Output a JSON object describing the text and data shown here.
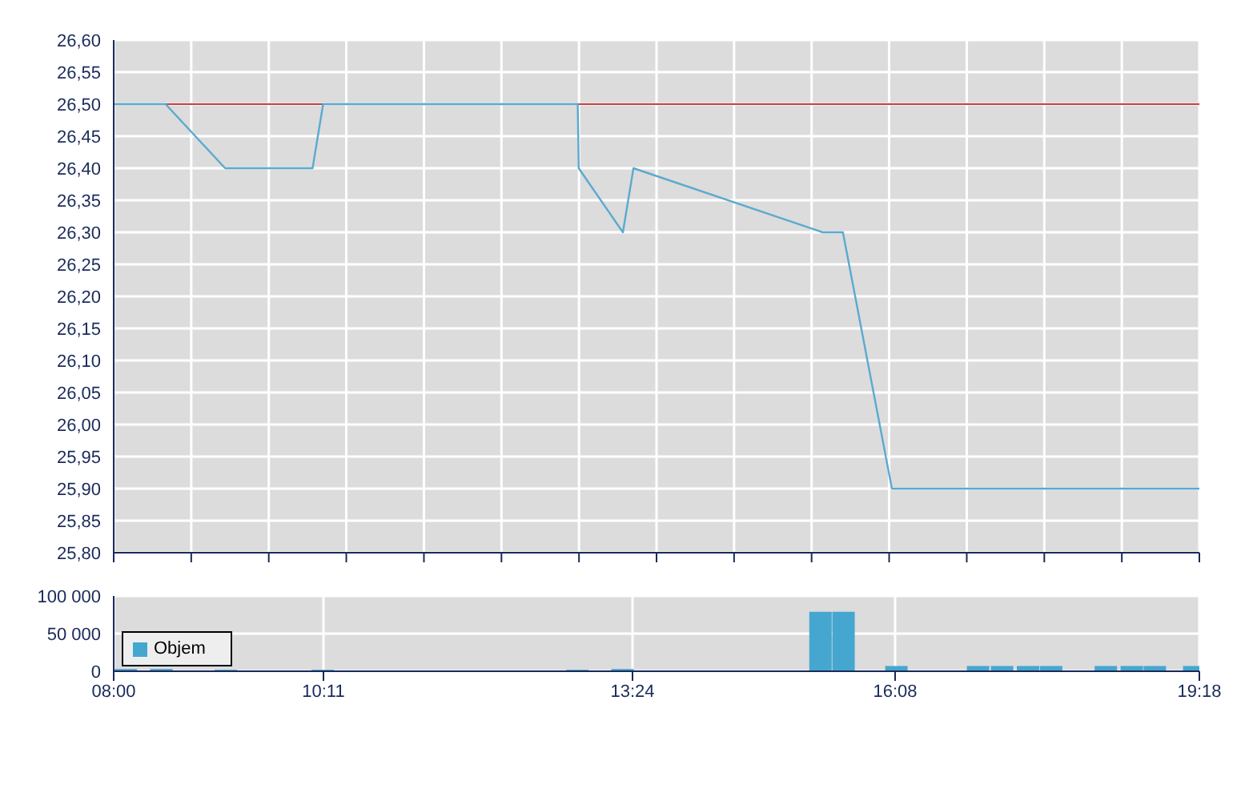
{
  "chart_data": [
    {
      "type": "line",
      "xlim": [
        8,
        19.3
      ],
      "xticks": [
        {
          "value": 8,
          "label": null
        },
        {
          "value": 8.807,
          "label": null
        },
        {
          "value": 9.614,
          "label": null
        },
        {
          "value": 10.421,
          "label": null
        },
        {
          "value": 11.229,
          "label": null
        },
        {
          "value": 12.036,
          "label": null
        },
        {
          "value": 12.843,
          "label": null
        },
        {
          "value": 13.65,
          "label": null
        },
        {
          "value": 14.457,
          "label": null
        },
        {
          "value": 15.264,
          "label": null
        },
        {
          "value": 16.071,
          "label": null
        },
        {
          "value": 16.879,
          "label": null
        },
        {
          "value": 17.686,
          "label": null
        },
        {
          "value": 18.493,
          "label": null
        },
        {
          "value": 19.3,
          "label": null
        }
      ],
      "ylim": [
        25.8,
        26.6
      ],
      "yticks": [
        {
          "value": 25.8,
          "label": "25,80"
        },
        {
          "value": 25.85,
          "label": "25,85"
        },
        {
          "value": 25.9,
          "label": "25,90"
        },
        {
          "value": 25.95,
          "label": "25,95"
        },
        {
          "value": 26.0,
          "label": "26,00"
        },
        {
          "value": 26.05,
          "label": "26,05"
        },
        {
          "value": 26.1,
          "label": "26,10"
        },
        {
          "value": 26.15,
          "label": "26,15"
        },
        {
          "value": 26.2,
          "label": "26,20"
        },
        {
          "value": 26.25,
          "label": "26,25"
        },
        {
          "value": 26.3,
          "label": "26,30"
        },
        {
          "value": 26.35,
          "label": "26,35"
        },
        {
          "value": 26.4,
          "label": "26,40"
        },
        {
          "value": 26.45,
          "label": "26,45"
        },
        {
          "value": 26.5,
          "label": "26,50"
        },
        {
          "value": 26.55,
          "label": "26,55"
        },
        {
          "value": 26.6,
          "label": "26,60"
        }
      ],
      "series": [
        {
          "color": "#5aaad0",
          "x": [
            8,
            8.54,
            9.16,
            10.07,
            10.18,
            12.83,
            12.84,
            13.3,
            13.41,
            15.38,
            15.59,
            16.1,
            19.3
          ],
          "values": [
            26.5,
            26.5,
            26.4,
            26.4,
            26.5,
            26.5,
            26.4,
            26.3,
            26.4,
            26.3,
            26.3,
            25.9,
            25.9
          ]
        }
      ],
      "ref_lines": [
        {
          "axis": "y",
          "value": 26.5,
          "label": null,
          "color": "#c84040"
        }
      ],
      "grid": true,
      "legend": false,
      "marker": "none",
      "tick_labels": "y"
    },
    {
      "type": "bar",
      "xlim": [
        8,
        19.3
      ],
      "xticks": [
        {
          "value": 8,
          "label": "08:00"
        },
        {
          "value": 10.1833,
          "label": "10:11"
        },
        {
          "value": 13.4,
          "label": "13:24"
        },
        {
          "value": 16.1333,
          "label": "16:08"
        },
        {
          "value": 19.3,
          "label": "19:18"
        }
      ],
      "ylim": [
        0,
        100000
      ],
      "yticks": [
        {
          "value": 0,
          "label": "0"
        },
        {
          "value": 50000,
          "label": "50 000"
        },
        {
          "value": 100000,
          "label": "100 000"
        }
      ],
      "series": [
        {
          "name": "Objem",
          "color": "#45a7cf",
          "x": [
            8.13,
            8.5,
            9.17,
            10.18,
            12.83,
            13.3,
            15.36,
            15.6,
            16.15,
            17.0,
            17.25,
            17.52,
            17.76,
            18.33,
            18.6,
            18.84,
            19.25
          ],
          "values": [
            3000,
            3000,
            2000,
            2000,
            2000,
            3000,
            79000,
            79000,
            7000,
            7000,
            7000,
            7000,
            7000,
            7000,
            7000,
            7000,
            7000
          ]
        }
      ],
      "grid": true,
      "legend": "left"
    }
  ]
}
